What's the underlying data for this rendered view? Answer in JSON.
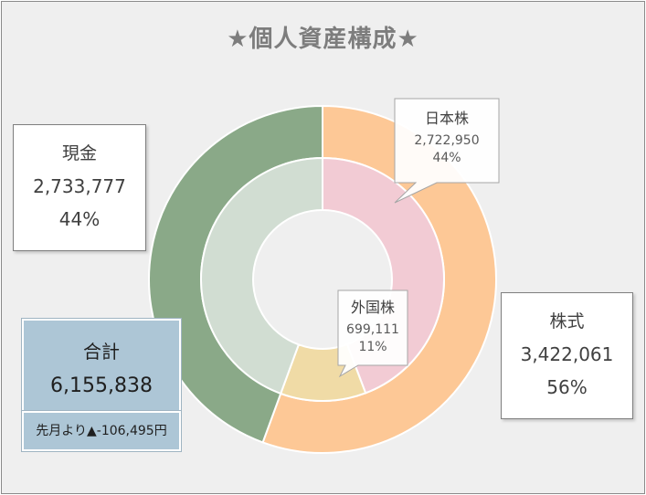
{
  "title": "★個人資産構成★",
  "total": {
    "label": "合計",
    "value": "6,155,838",
    "change": "先月より▲-106,495円"
  },
  "chart_data": {
    "type": "donut",
    "rings": [
      {
        "level": "outer",
        "slices": [
          {
            "name": "株式",
            "value": 3422061,
            "value_label": "3,422,061",
            "percent_label": "56%",
            "color": "#fdc896"
          },
          {
            "name": "現金",
            "value": 2733777,
            "value_label": "2,733,777",
            "percent_label": "44%",
            "color": "#8aa988"
          }
        ]
      },
      {
        "level": "inner",
        "slices": [
          {
            "name": "日本株",
            "value": 2722950,
            "value_label": "2,722,950",
            "percent_label": "44%",
            "color": "#f2cbd4"
          },
          {
            "name": "外国株",
            "value": 699111,
            "value_label": "699,111",
            "percent_label": "11%",
            "color": "#f0dba6"
          },
          {
            "name": "現金",
            "value": 2733777,
            "value_label": "2,733,777",
            "percent_label": "44%",
            "color": "#d1ddd2"
          }
        ]
      }
    ]
  }
}
